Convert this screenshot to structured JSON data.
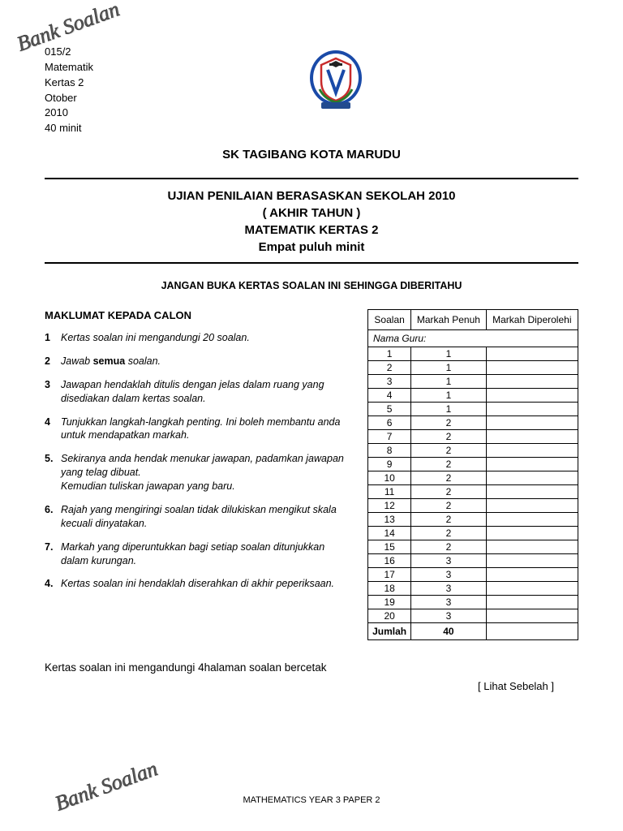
{
  "watermark_text": "Bank Soalan",
  "header": {
    "code": "015/2",
    "subject": "Matematik",
    "paper": "Kertas 2",
    "month": "Otober",
    "year": "2010",
    "duration": "40 minit"
  },
  "school_name": "SK TAGIBANG KOTA MARUDU",
  "title": {
    "line1": "UJIAN PENILAIAN BERASASKAN SEKOLAH 2010",
    "line2": "( AKHIR TAHUN )",
    "line3": "MATEMATIK  KERTAS  2",
    "line4": "Empat puluh minit"
  },
  "warning": "JANGAN BUKA KERTAS SOALAN INI SEHINGGA DIBERITAHU",
  "instructions_title": "MAKLUMAT KEPADA CALON",
  "instructions": [
    {
      "n": "1",
      "prefix": "Kertas soalan ini mengandungi ",
      "bold": "",
      "suffix": "20 soalan."
    },
    {
      "n": "2",
      "prefix": " Jawab ",
      "bold": "semua",
      "suffix": " soalan."
    },
    {
      "n": "3",
      "prefix": "Jawapan hendaklah ditulis dengan jelas  dalam ruang yang disediakan dalam kertas soalan.",
      "bold": "",
      "suffix": ""
    },
    {
      "n": "4",
      "prefix": "Tunjukkan langkah-langkah penting. Ini boleh membantu anda untuk mendapatkan markah.",
      "bold": "",
      "suffix": ""
    },
    {
      "n": "5.",
      "prefix": "Sekiranya anda hendak menukar jawapan, padamkan jawapan yang telag dibuat.\nKemudian tuliskan jawapan yang baru.",
      "bold": "",
      "suffix": ""
    },
    {
      "n": "6.",
      "prefix": "Rajah yang mengiringi soalan tidak dilukiskan mengikut skala kecuali dinyatakan.",
      "bold": "",
      "suffix": ""
    },
    {
      "n": "7.",
      "prefix": "Markah yang diperuntukkan bagi setiap soalan ditunjukkan dalam kurungan.",
      "bold": "",
      "suffix": ""
    },
    {
      "n": "4.",
      "prefix": "Kertas soalan ini hendaklah diserahkan di akhir peperiksaan.",
      "bold": "",
      "suffix": ""
    }
  ],
  "table": {
    "nama_guru_label": "Nama Guru:",
    "col_soalan": "Soalan",
    "col_penuh": "Markah Penuh",
    "col_diperolehi": "Markah Diperolehi",
    "rows": [
      {
        "q": "1",
        "m": "1"
      },
      {
        "q": "2",
        "m": "1"
      },
      {
        "q": "3",
        "m": "1"
      },
      {
        "q": "4",
        "m": "1"
      },
      {
        "q": "5",
        "m": "1"
      },
      {
        "q": "6",
        "m": "2"
      },
      {
        "q": "7",
        "m": "2"
      },
      {
        "q": "8",
        "m": "2"
      },
      {
        "q": "9",
        "m": "2"
      },
      {
        "q": "10",
        "m": "2"
      },
      {
        "q": "11",
        "m": "2"
      },
      {
        "q": "12",
        "m": "2"
      },
      {
        "q": "13",
        "m": "2"
      },
      {
        "q": "14",
        "m": "2"
      },
      {
        "q": "15",
        "m": "2"
      },
      {
        "q": "16",
        "m": "3"
      },
      {
        "q": "17",
        "m": "3"
      },
      {
        "q": "18",
        "m": "3"
      },
      {
        "q": "19",
        "m": "3"
      },
      {
        "q": "20",
        "m": "3"
      }
    ],
    "jumlah_label": "Jumlah",
    "jumlah_value": "40"
  },
  "footer_note": "Kertas soalan ini mengandungi  4halaman soalan bercetak",
  "lihat": "[ Lihat Sebelah ]",
  "bottom_footer": "MATHEMATICS YEAR 3 PAPER 2",
  "logo_colors": {
    "outer": "#1a4aa8",
    "shield_fill": "#ffffff",
    "shield_border": "#c82b2b",
    "v_color": "#1a4aa8",
    "cap": "#222222",
    "laurel": "#2a7a2a",
    "ribbon": "#224b8f"
  }
}
